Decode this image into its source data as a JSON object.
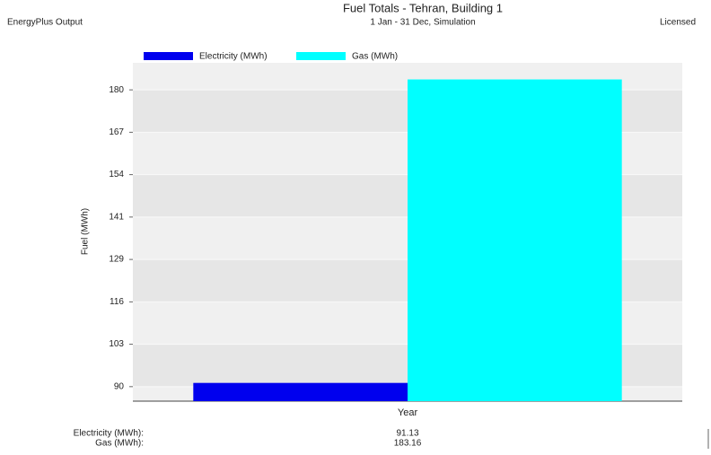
{
  "chart_data": {
    "type": "bar",
    "title": "Fuel Totals - Tehran, Building 1",
    "subtitle": "1 Jan - 31 Dec, Simulation",
    "header_left": "EnergyPlus Output",
    "header_right": "Licensed",
    "y_label": "Fuel (MWh)",
    "categories": [
      "Year"
    ],
    "series": [
      {
        "name": "Electricity (MWh)",
        "color": "#0000ee",
        "values": [
          91.13
        ]
      },
      {
        "name": "Gas (MWh)",
        "color": "#00ffff",
        "values": [
          183.16
        ]
      }
    ],
    "footer_labels": [
      "Electricity (MWh):",
      "Gas (MWh):"
    ],
    "ylim": [
      85.6,
      188.2
    ],
    "yticks": [
      {
        "value": 90,
        "label": "90"
      },
      {
        "value": 102.86,
        "label": "103"
      },
      {
        "value": 115.71,
        "label": "116"
      },
      {
        "value": 128.57,
        "label": "129"
      },
      {
        "value": 141.43,
        "label": "141"
      },
      {
        "value": 154.29,
        "label": "154"
      },
      {
        "value": 167.14,
        "label": "167"
      },
      {
        "value": 180,
        "label": "180"
      }
    ],
    "grid": true
  }
}
